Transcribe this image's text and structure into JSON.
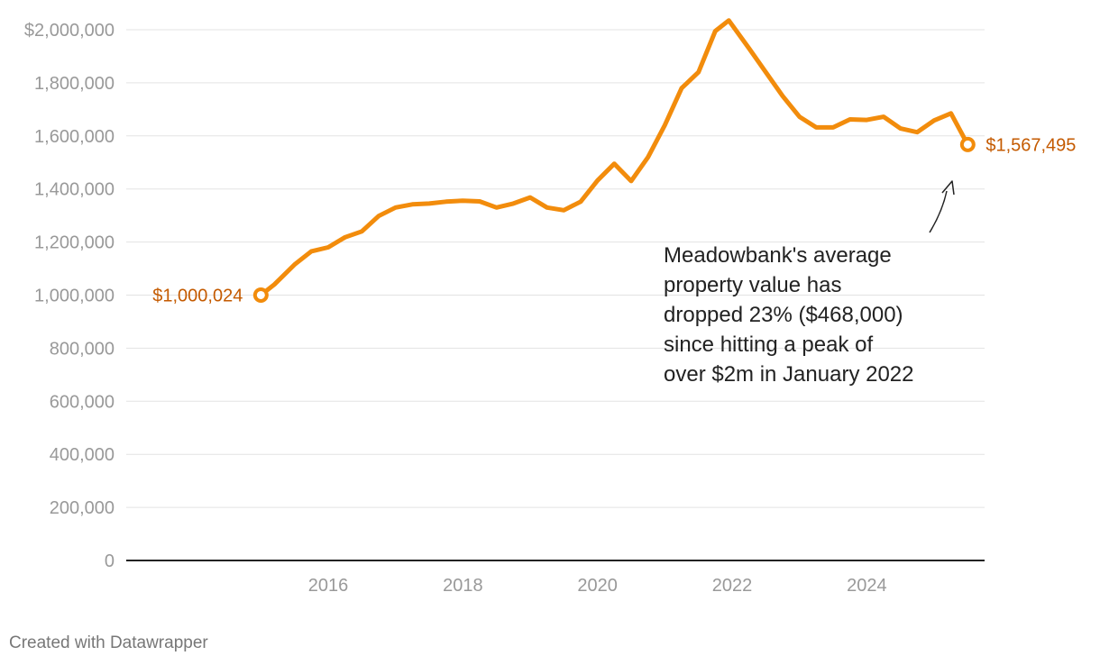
{
  "chart_data": {
    "type": "line",
    "title": "",
    "xlabel": "",
    "ylabel": "",
    "ylim": [
      0,
      2000000
    ],
    "xlim": [
      2013.0,
      2025.75
    ],
    "y_ticks": [
      {
        "value": 0,
        "label": "0"
      },
      {
        "value": 200000,
        "label": "200,000"
      },
      {
        "value": 400000,
        "label": "400,000"
      },
      {
        "value": 600000,
        "label": "600,000"
      },
      {
        "value": 800000,
        "label": "800,000"
      },
      {
        "value": 1000000,
        "label": "1,000,000"
      },
      {
        "value": 1200000,
        "label": "1,200,000"
      },
      {
        "value": 1400000,
        "label": "1,400,000"
      },
      {
        "value": 1600000,
        "label": "1,600,000"
      },
      {
        "value": 1800000,
        "label": "1,800,000"
      },
      {
        "value": 2000000,
        "label": "$2,000,000"
      }
    ],
    "x_ticks": [
      {
        "value": 2016,
        "label": "2016"
      },
      {
        "value": 2018,
        "label": "2018"
      },
      {
        "value": 2020,
        "label": "2020"
      },
      {
        "value": 2022,
        "label": "2022"
      },
      {
        "value": 2024,
        "label": "2024"
      }
    ],
    "series": [
      {
        "name": "Meadowbank average property value",
        "color": "#f28c0c",
        "x": [
          2015.0,
          2015.2,
          2015.5,
          2015.75,
          2016.0,
          2016.25,
          2016.5,
          2016.75,
          2017.0,
          2017.25,
          2017.5,
          2017.75,
          2018.0,
          2018.25,
          2018.5,
          2018.75,
          2019.0,
          2019.25,
          2019.5,
          2019.75,
          2020.0,
          2020.25,
          2020.5,
          2020.75,
          2021.0,
          2021.25,
          2021.5,
          2021.75,
          2021.95,
          2022.25,
          2022.5,
          2022.75,
          2023.0,
          2023.25,
          2023.5,
          2023.75,
          2024.0,
          2024.25,
          2024.5,
          2024.75,
          2025.0,
          2025.25,
          2025.5
        ],
        "values": [
          1000024,
          1040000,
          1115000,
          1165000,
          1180000,
          1218000,
          1240000,
          1298000,
          1330000,
          1342000,
          1345000,
          1352000,
          1356000,
          1353000,
          1330000,
          1345000,
          1368000,
          1330000,
          1320000,
          1352000,
          1432000,
          1495000,
          1430000,
          1520000,
          1640000,
          1780000,
          1840000,
          1995000,
          2035000,
          1930000,
          1840000,
          1750000,
          1672000,
          1632000,
          1632000,
          1662000,
          1660000,
          1672000,
          1628000,
          1614000,
          1658000,
          1685000,
          1567495
        ]
      }
    ],
    "start_label": "$1,000,024",
    "end_label": "$1,567,495",
    "label_color": "#c45a00",
    "annotation": {
      "lines": [
        "Meadowbank's average",
        "property value has",
        "dropped 23% ($468,000)",
        "since hitting a peak of",
        "over $2m in January 2022"
      ]
    }
  },
  "footer": {
    "credit": "Created with Datawrapper"
  }
}
